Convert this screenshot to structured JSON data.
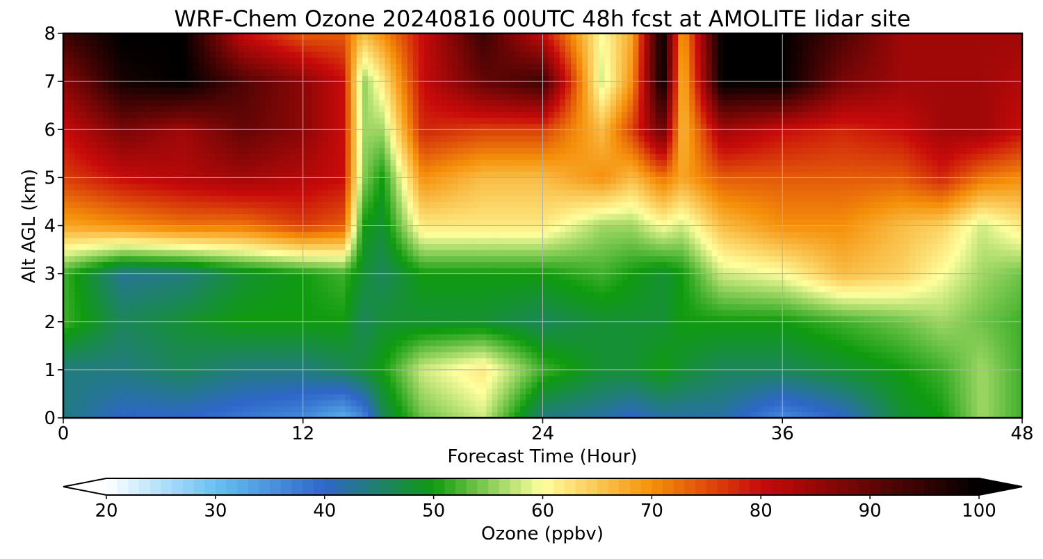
{
  "chart_data": {
    "type": "heatmap",
    "title": "WRF-Chem Ozone  20240816 00UTC 48h fcst at AMOLITE lidar site",
    "xlabel": "Forecast Time (Hour)",
    "ylabel": "Alt AGL (km)",
    "xlim": [
      0,
      48
    ],
    "ylim": [
      0,
      8
    ],
    "x_ticks": [
      0,
      12,
      24,
      36,
      48
    ],
    "y_ticks": [
      0,
      1,
      2,
      3,
      4,
      5,
      6,
      7,
      8
    ],
    "grid": true,
    "x": [
      0,
      3,
      6,
      9,
      12,
      14,
      15,
      16,
      18,
      21,
      24,
      27,
      28.5,
      30,
      31,
      33,
      36,
      39,
      42,
      44,
      46,
      48
    ],
    "y": [
      0,
      1,
      2,
      3,
      4,
      5,
      6,
      7,
      8
    ],
    "z": [
      [
        44,
        40,
        40,
        38,
        36,
        32,
        36,
        46,
        54,
        58,
        44,
        42,
        40,
        42,
        42,
        42,
        36,
        40,
        48,
        50,
        56,
        52
      ],
      [
        44,
        44,
        46,
        44,
        44,
        46,
        48,
        50,
        58,
        62,
        52,
        48,
        48,
        50,
        48,
        46,
        46,
        48,
        50,
        52,
        56,
        52
      ],
      [
        52,
        46,
        48,
        50,
        50,
        50,
        46,
        48,
        48,
        48,
        46,
        48,
        48,
        48,
        50,
        50,
        50,
        52,
        54,
        56,
        54,
        52
      ],
      [
        52,
        43,
        44,
        48,
        50,
        52,
        48,
        46,
        50,
        50,
        50,
        52,
        50,
        48,
        50,
        58,
        60,
        66,
        64,
        60,
        56,
        54
      ],
      [
        68,
        70,
        72,
        72,
        76,
        74,
        50,
        48,
        62,
        62,
        62,
        56,
        56,
        60,
        58,
        66,
        70,
        70,
        66,
        64,
        58,
        62
      ],
      [
        76,
        80,
        82,
        84,
        82,
        80,
        55,
        50,
        70,
        66,
        66,
        70,
        66,
        72,
        68,
        74,
        74,
        74,
        74,
        78,
        72,
        70
      ],
      [
        80,
        88,
        84,
        90,
        86,
        80,
        56,
        56,
        78,
        76,
        76,
        66,
        76,
        90,
        66,
        84,
        80,
        78,
        80,
        84,
        84,
        80
      ],
      [
        86,
        98,
        100,
        92,
        86,
        80,
        55,
        62,
        80,
        90,
        94,
        58,
        70,
        100,
        66,
        100,
        100,
        88,
        84,
        84,
        84,
        82
      ],
      [
        94,
        100,
        100,
        80,
        74,
        74,
        66,
        70,
        80,
        94,
        80,
        60,
        68,
        100,
        68,
        100,
        100,
        92,
        84,
        84,
        84,
        84
      ]
    ],
    "colorbar": {
      "label": "Ozone  (ppbv)",
      "min": 20,
      "max": 100,
      "ticks": [
        20,
        30,
        40,
        50,
        60,
        70,
        80,
        90,
        100
      ],
      "extend": "both",
      "colors": [
        "#ffffff",
        "#67c1f3",
        "#2e66c9",
        "#0f9b0f",
        "#ffff9e",
        "#f5900a",
        "#c80a0a",
        "#000000"
      ],
      "stops": [
        20,
        30,
        40,
        50,
        60,
        70,
        80,
        100
      ]
    }
  }
}
